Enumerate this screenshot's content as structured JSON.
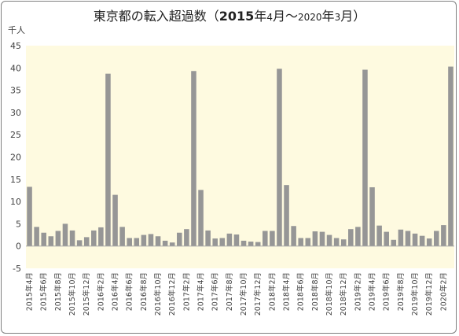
{
  "chart_data": {
    "type": "bar",
    "title": {
      "main": "東京都の転入超過数",
      "open": "（",
      "start_year": "2015",
      "start_year_suffix": "年",
      "start_month": "4",
      "start_month_suffix": "月",
      "tilde": "～",
      "end_year": "2020",
      "end_year_suffix": "年",
      "end_month": "3",
      "end_month_suffix": "月",
      "close": "）"
    },
    "ylabel": "千人",
    "xlabel": "",
    "ylim": [
      -5,
      45
    ],
    "yticks": [
      -5,
      0,
      5,
      10,
      15,
      20,
      25,
      30,
      35,
      40,
      45
    ],
    "grid": false,
    "legend": "none",
    "colors": {
      "bar": "#969696",
      "plot_background": "#fefae0",
      "axis": "#a6a6a6"
    },
    "categories": [
      "2015年4月",
      "2015年5月",
      "2015年6月",
      "2015年7月",
      "2015年8月",
      "2015年9月",
      "2015年10月",
      "2015年11月",
      "2015年12月",
      "2016年1月",
      "2016年2月",
      "2016年3月",
      "2016年4月",
      "2016年5月",
      "2016年6月",
      "2016年7月",
      "2016年8月",
      "2016年9月",
      "2016年10月",
      "2016年11月",
      "2016年12月",
      "2017年1月",
      "2017年2月",
      "2017年3月",
      "2017年4月",
      "2017年5月",
      "2017年6月",
      "2017年7月",
      "2017年8月",
      "2017年9月",
      "2017年10月",
      "2017年11月",
      "2017年12月",
      "2018年1月",
      "2018年2月",
      "2018年3月",
      "2018年4月",
      "2018年5月",
      "2018年6月",
      "2018年7月",
      "2018年8月",
      "2018年9月",
      "2018年10月",
      "2018年11月",
      "2018年12月",
      "2019年1月",
      "2019年2月",
      "2019年3月",
      "2019年4月",
      "2019年5月",
      "2019年6月",
      "2019年7月",
      "2019年8月",
      "2019年9月",
      "2019年10月",
      "2019年11月",
      "2019年12月",
      "2020年1月",
      "2020年2月",
      "2020年3月"
    ],
    "values": [
      13.3,
      4.3,
      3.0,
      2.2,
      3.4,
      5.0,
      3.5,
      1.3,
      2.0,
      3.5,
      4.2,
      38.7,
      11.5,
      4.3,
      1.8,
      1.8,
      2.5,
      2.7,
      2.2,
      1.2,
      0.8,
      3.0,
      3.8,
      39.3,
      12.6,
      3.5,
      1.7,
      1.8,
      2.8,
      2.6,
      1.2,
      1.0,
      0.9,
      3.4,
      3.4,
      39.8,
      13.7,
      4.5,
      1.8,
      1.8,
      3.3,
      3.2,
      2.5,
      1.8,
      1.5,
      3.8,
      4.3,
      39.6,
      13.2,
      4.6,
      3.2,
      1.4,
      3.7,
      3.4,
      2.8,
      2.3,
      1.7,
      3.4,
      4.7,
      40.3
    ],
    "xtick_labels": [
      "2015年4月",
      "2015年6月",
      "2015年8月",
      "2015年10月",
      "2015年12月",
      "2016年2月",
      "2016年4月",
      "2016年6月",
      "2016年8月",
      "2016年10月",
      "2016年12月",
      "2017年2月",
      "2017年4月",
      "2017年6月",
      "2017年8月",
      "2017年10月",
      "2017年12月",
      "2018年2月",
      "2018年4月",
      "2018年6月",
      "2018年8月",
      "2018年10月",
      "2018年12月",
      "2019年2月",
      "2019年4月",
      "2019年6月",
      "2019年8月",
      "2019年10月",
      "2019年12月",
      "2020年2月"
    ]
  }
}
